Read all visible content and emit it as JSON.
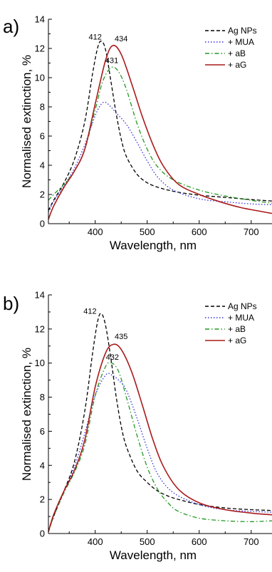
{
  "chart_data": [
    {
      "type": "line",
      "panel_label": "a)",
      "xlabel": "Wavelength, nm",
      "ylabel": "Normalised extinction, %",
      "xlim": [
        310,
        740
      ],
      "ylim": [
        0,
        14
      ],
      "xticks": [
        400,
        500,
        600,
        700
      ],
      "yticks": [
        0,
        2,
        4,
        6,
        8,
        10,
        12,
        14
      ],
      "legend": "top-right",
      "annotations": [
        {
          "text": "412",
          "x": 400,
          "y": 12.6
        },
        {
          "text": "434",
          "x": 450,
          "y": 12.5
        },
        {
          "text": "431",
          "x": 432,
          "y": 11.0
        }
      ],
      "series": [
        {
          "name": "Ag NPs",
          "color": "#000000",
          "dash": "dash",
          "x": [
            310,
            320,
            340,
            360,
            380,
            395,
            405,
            412,
            420,
            430,
            440,
            450,
            460,
            480,
            500,
            520,
            540,
            560,
            600,
            650,
            700,
            740
          ],
          "y": [
            0.9,
            1.6,
            2.8,
            4.4,
            7.0,
            10.3,
            12.1,
            12.5,
            11.9,
            9.8,
            7.6,
            5.8,
            4.6,
            3.4,
            2.8,
            2.5,
            2.3,
            2.15,
            1.95,
            1.8,
            1.65,
            1.55
          ]
        },
        {
          "name": "+ MUA",
          "color": "#3333dd",
          "dash": "dot",
          "x": [
            310,
            320,
            340,
            360,
            380,
            400,
            412,
            420,
            430,
            440,
            460,
            480,
            500,
            520,
            550,
            600,
            650,
            700,
            740
          ],
          "y": [
            0.8,
            1.5,
            2.6,
            3.8,
            5.4,
            7.4,
            8.2,
            8.3,
            8.0,
            7.6,
            6.8,
            5.6,
            4.3,
            3.2,
            2.3,
            1.7,
            1.5,
            1.35,
            1.3
          ]
        },
        {
          "name": "+ aB",
          "color": "#229922",
          "dash": "dashdot",
          "x": [
            310,
            320,
            340,
            360,
            380,
            400,
            415,
            431,
            445,
            460,
            480,
            500,
            520,
            550,
            600,
            650,
            700,
            740
          ],
          "y": [
            1.6,
            2.0,
            2.7,
            3.6,
            5.1,
            7.8,
            9.8,
            10.7,
            10.4,
            9.2,
            6.9,
            5.1,
            3.9,
            3.0,
            2.3,
            1.9,
            1.6,
            1.4
          ]
        },
        {
          "name": "+ aG",
          "color": "#aa1a1a",
          "dash": "solid",
          "x": [
            310,
            320,
            340,
            360,
            380,
            400,
            420,
            434,
            450,
            470,
            490,
            510,
            530,
            560,
            600,
            640,
            680,
            710,
            740
          ],
          "y": [
            0.3,
            1.2,
            2.5,
            3.6,
            5.1,
            8.2,
            11.2,
            12.2,
            11.6,
            9.6,
            7.4,
            5.5,
            4.0,
            2.7,
            2.0,
            1.5,
            1.1,
            0.9,
            0.7
          ]
        }
      ]
    },
    {
      "type": "line",
      "panel_label": "b)",
      "xlabel": "Wavelength, nm",
      "ylabel": "Normalised extinction, %",
      "xlim": [
        310,
        740
      ],
      "ylim": [
        0,
        14
      ],
      "xticks": [
        400,
        500,
        600,
        700
      ],
      "yticks": [
        0,
        2,
        4,
        6,
        8,
        10,
        12,
        14
      ],
      "legend": "top-right",
      "annotations": [
        {
          "text": "412",
          "x": 390,
          "y": 12.9
        },
        {
          "text": "435",
          "x": 450,
          "y": 11.4
        },
        {
          "text": "432",
          "x": 433,
          "y": 10.2
        }
      ],
      "series": [
        {
          "name": "Ag NPs",
          "color": "#000000",
          "dash": "dash",
          "x": [
            310,
            320,
            340,
            360,
            380,
            395,
            405,
            412,
            420,
            430,
            440,
            450,
            460,
            480,
            500,
            520,
            540,
            560,
            600,
            650,
            700,
            740
          ],
          "y": [
            0.1,
            1.0,
            2.5,
            4.2,
            7.2,
            10.6,
            12.5,
            12.9,
            12.2,
            10.3,
            8.1,
            6.3,
            5.1,
            3.7,
            3.0,
            2.5,
            2.2,
            2.0,
            1.7,
            1.5,
            1.4,
            1.35
          ]
        },
        {
          "name": "+ MUA",
          "color": "#3333dd",
          "dash": "dot",
          "x": [
            310,
            320,
            340,
            360,
            380,
            400,
            420,
            432,
            445,
            460,
            480,
            500,
            520,
            550,
            600,
            650,
            700,
            740
          ],
          "y": [
            0.1,
            1.1,
            2.5,
            3.9,
            5.9,
            8.1,
            9.3,
            9.3,
            9.0,
            8.4,
            6.8,
            5.0,
            3.5,
            2.4,
            1.7,
            1.4,
            1.3,
            1.25
          ]
        },
        {
          "name": "+ aB",
          "color": "#229922",
          "dash": "dashdot",
          "x": [
            310,
            320,
            340,
            360,
            380,
            400,
            420,
            432,
            445,
            460,
            480,
            500,
            520,
            540,
            560,
            600,
            650,
            700,
            740
          ],
          "y": [
            0.1,
            1.0,
            2.4,
            3.6,
            5.2,
            8.1,
            9.8,
            10.0,
            9.5,
            8.0,
            5.8,
            3.9,
            2.6,
            1.8,
            1.3,
            0.9,
            0.75,
            0.7,
            0.75
          ]
        },
        {
          "name": "+ aG",
          "color": "#aa1a1a",
          "dash": "solid",
          "x": [
            310,
            320,
            340,
            360,
            380,
            400,
            420,
            435,
            450,
            470,
            490,
            510,
            530,
            560,
            600,
            650,
            700,
            740
          ],
          "y": [
            0.1,
            1.1,
            2.5,
            3.7,
            5.5,
            8.6,
            10.6,
            11.1,
            10.8,
            9.5,
            7.6,
            5.6,
            4.0,
            2.6,
            1.8,
            1.4,
            1.2,
            1.1
          ]
        }
      ]
    }
  ]
}
